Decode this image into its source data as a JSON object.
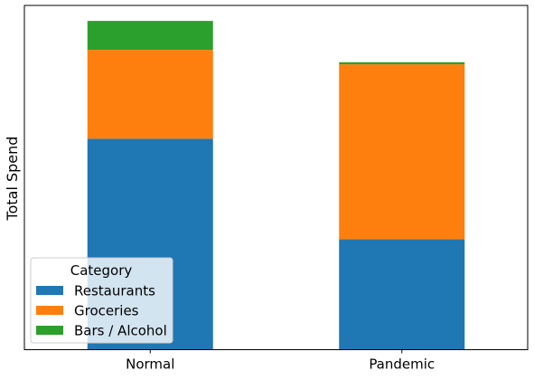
{
  "chart_data": {
    "type": "bar",
    "stacked": true,
    "categories": [
      "Normal",
      "Pandemic"
    ],
    "series": [
      {
        "name": "Restaurants",
        "color": "#1f77b4",
        "values": [
          0.613,
          0.321
        ]
      },
      {
        "name": "Groceries",
        "color": "#ff7f0e",
        "values": [
          0.258,
          0.508
        ]
      },
      {
        "name": "Bars / Alcohol",
        "color": "#2ca02c",
        "values": [
          0.084,
          0.006
        ]
      }
    ],
    "title": "",
    "xlabel": "",
    "ylabel": "Total Spend",
    "ylim": [
      0,
      1.0
    ],
    "y_ticks_shown": false,
    "grid": false,
    "legend": {
      "title": "Category",
      "placement": "lower-left"
    }
  }
}
